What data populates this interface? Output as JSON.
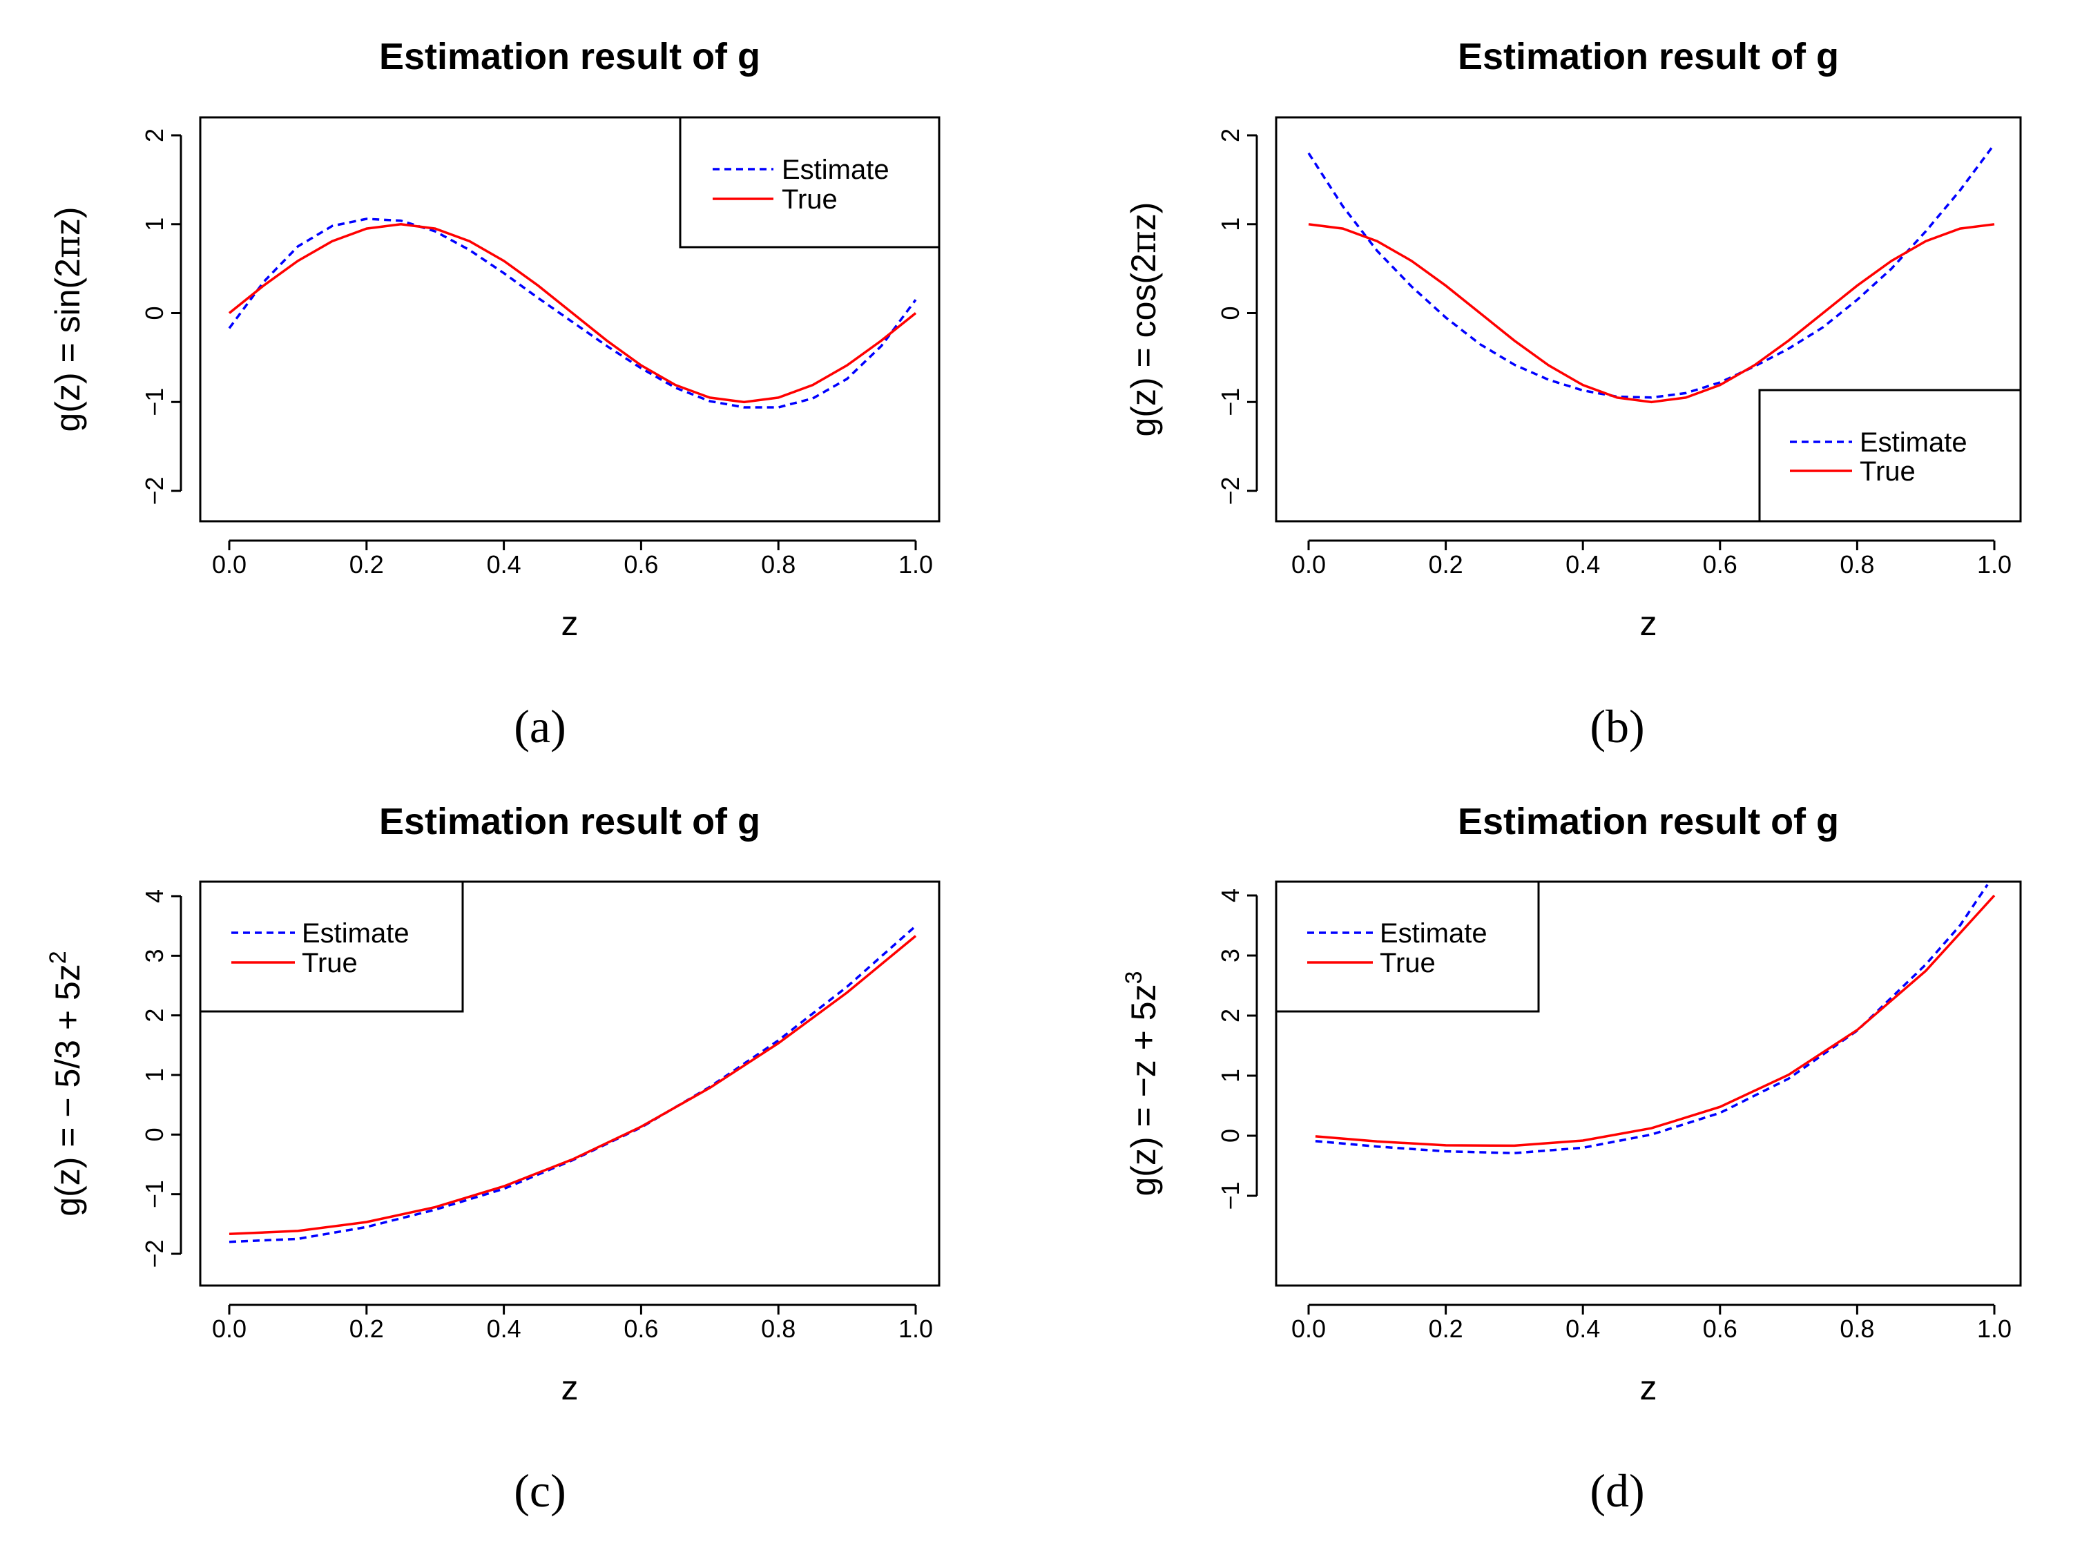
{
  "chart_data": [
    {
      "type": "line",
      "caption": "(a)",
      "title": "Estimation result of g",
      "xlabel": "z",
      "ylabel": "g(z) = sin(2πz)",
      "ylabel_parts": [
        "g(z) = sin(2",
        "π",
        "z)"
      ],
      "xlim": [
        0,
        1
      ],
      "ylim": [
        -2,
        2
      ],
      "xticks": [
        "0.0",
        "0.2",
        "0.4",
        "0.6",
        "0.8",
        "1.0"
      ],
      "yticks": [
        "−2",
        "−1",
        "0",
        "1",
        "2"
      ],
      "legend_position": "top-right",
      "series": [
        {
          "name": "Estimate",
          "color": "#0000ff",
          "style": "dashed",
          "x": [
            0.0,
            0.05,
            0.1,
            0.15,
            0.2,
            0.25,
            0.3,
            0.35,
            0.4,
            0.45,
            0.5,
            0.55,
            0.6,
            0.65,
            0.7,
            0.75,
            0.8,
            0.85,
            0.9,
            0.95,
            1.0
          ],
          "y": [
            -0.17,
            0.35,
            0.75,
            0.98,
            1.06,
            1.04,
            0.92,
            0.71,
            0.45,
            0.17,
            -0.1,
            -0.37,
            -0.62,
            -0.84,
            -0.99,
            -1.06,
            -1.06,
            -0.96,
            -0.74,
            -0.37,
            0.15
          ]
        },
        {
          "name": "True",
          "color": "#ff0000",
          "style": "solid",
          "x": [
            0.0,
            0.05,
            0.1,
            0.15,
            0.2,
            0.25,
            0.3,
            0.35,
            0.4,
            0.45,
            0.5,
            0.55,
            0.6,
            0.65,
            0.7,
            0.75,
            0.8,
            0.85,
            0.9,
            0.95,
            1.0
          ],
          "y": [
            0.0,
            0.309,
            0.588,
            0.809,
            0.951,
            1.0,
            0.951,
            0.809,
            0.588,
            0.309,
            0.0,
            -0.309,
            -0.588,
            -0.809,
            -0.951,
            -1.0,
            -0.951,
            -0.809,
            -0.588,
            -0.309,
            0.0
          ]
        }
      ]
    },
    {
      "type": "line",
      "caption": "(b)",
      "title": "Estimation result of g",
      "xlabel": "z",
      "ylabel": "g(z) = cos(2πz)",
      "ylabel_parts": [
        "g(z) = cos(2",
        "π",
        "z)"
      ],
      "xlim": [
        0,
        1
      ],
      "ylim": [
        -2,
        2
      ],
      "xticks": [
        "0.0",
        "0.2",
        "0.4",
        "0.6",
        "0.8",
        "1.0"
      ],
      "yticks": [
        "−2",
        "−1",
        "0",
        "1",
        "2"
      ],
      "legend_position": "bottom-right",
      "series": [
        {
          "name": "Estimate",
          "color": "#0000ff",
          "style": "dashed",
          "x": [
            0.0,
            0.05,
            0.1,
            0.15,
            0.2,
            0.25,
            0.3,
            0.35,
            0.4,
            0.45,
            0.5,
            0.55,
            0.6,
            0.65,
            0.7,
            0.75,
            0.8,
            0.85,
            0.9,
            0.95,
            1.0
          ],
          "y": [
            1.8,
            1.2,
            0.7,
            0.3,
            -0.05,
            -0.35,
            -0.58,
            -0.75,
            -0.87,
            -0.94,
            -0.95,
            -0.9,
            -0.78,
            -0.6,
            -0.4,
            -0.16,
            0.15,
            0.5,
            0.92,
            1.38,
            1.9
          ]
        },
        {
          "name": "True",
          "color": "#ff0000",
          "style": "solid",
          "x": [
            0.0,
            0.05,
            0.1,
            0.15,
            0.2,
            0.25,
            0.3,
            0.35,
            0.4,
            0.45,
            0.5,
            0.55,
            0.6,
            0.65,
            0.7,
            0.75,
            0.8,
            0.85,
            0.9,
            0.95,
            1.0
          ],
          "y": [
            1.0,
            0.951,
            0.809,
            0.588,
            0.309,
            0.0,
            -0.309,
            -0.588,
            -0.809,
            -0.951,
            -1.0,
            -0.951,
            -0.809,
            -0.588,
            -0.309,
            0.0,
            0.309,
            0.588,
            0.809,
            0.951,
            1.0
          ]
        }
      ]
    },
    {
      "type": "line",
      "caption": "(c)",
      "title": "Estimation result of g",
      "xlabel": "z",
      "ylabel": "g(z) = − 5/3 + 5z²",
      "ylabel_parts": [
        "g(z) = − 5/3 + 5z",
        "2"
      ],
      "xlim": [
        0,
        1
      ],
      "ylim": [
        -2,
        4
      ],
      "xticks": [
        "0.0",
        "0.2",
        "0.4",
        "0.6",
        "0.8",
        "1.0"
      ],
      "yticks": [
        "−2",
        "−1",
        "0",
        "1",
        "2",
        "3",
        "4"
      ],
      "legend_position": "top-left",
      "series": [
        {
          "name": "Estimate",
          "color": "#0000ff",
          "style": "dashed",
          "x": [
            0.0,
            0.1,
            0.2,
            0.3,
            0.4,
            0.5,
            0.6,
            0.7,
            0.8,
            0.9,
            1.0
          ],
          "y": [
            -1.8,
            -1.75,
            -1.55,
            -1.26,
            -0.91,
            -0.43,
            0.12,
            0.8,
            1.58,
            2.48,
            3.5
          ]
        },
        {
          "name": "True",
          "color": "#ff0000",
          "style": "solid",
          "x": [
            0.0,
            0.1,
            0.2,
            0.3,
            0.4,
            0.5,
            0.6,
            0.7,
            0.8,
            0.9,
            1.0
          ],
          "y": [
            -1.667,
            -1.617,
            -1.467,
            -1.217,
            -0.867,
            -0.417,
            0.133,
            0.783,
            1.533,
            2.383,
            3.333
          ]
        }
      ]
    },
    {
      "type": "line",
      "caption": "(d)",
      "title": "Estimation result of g",
      "xlabel": "z",
      "ylabel": "g(z) = −z + 5z³",
      "ylabel_parts": [
        "g(z) = −z + 5z",
        "3"
      ],
      "xlim": [
        0,
        1
      ],
      "ylim": [
        -1,
        4
      ],
      "xticks": [
        "0.0",
        "0.2",
        "0.4",
        "0.6",
        "0.8",
        "1.0"
      ],
      "yticks": [
        "−1",
        "0",
        "1",
        "2",
        "3",
        "4"
      ],
      "legend_position": "top-left",
      "series": [
        {
          "name": "Estimate",
          "color": "#0000ff",
          "style": "dashed",
          "x": [
            0.01,
            0.1,
            0.2,
            0.3,
            0.4,
            0.5,
            0.6,
            0.7,
            0.8,
            0.9,
            0.95,
            0.99
          ],
          "y": [
            -0.09,
            -0.18,
            -0.26,
            -0.29,
            -0.2,
            0.02,
            0.38,
            0.95,
            1.75,
            2.85,
            3.5,
            4.18
          ]
        },
        {
          "name": "True",
          "color": "#ff0000",
          "style": "solid",
          "x": [
            0.01,
            0.1,
            0.2,
            0.3,
            0.4,
            0.5,
            0.6,
            0.7,
            0.8,
            0.9,
            1.0
          ],
          "y": [
            -0.01,
            -0.095,
            -0.16,
            -0.165,
            -0.08,
            0.125,
            0.48,
            1.015,
            1.76,
            2.745,
            4.0
          ]
        }
      ]
    }
  ]
}
